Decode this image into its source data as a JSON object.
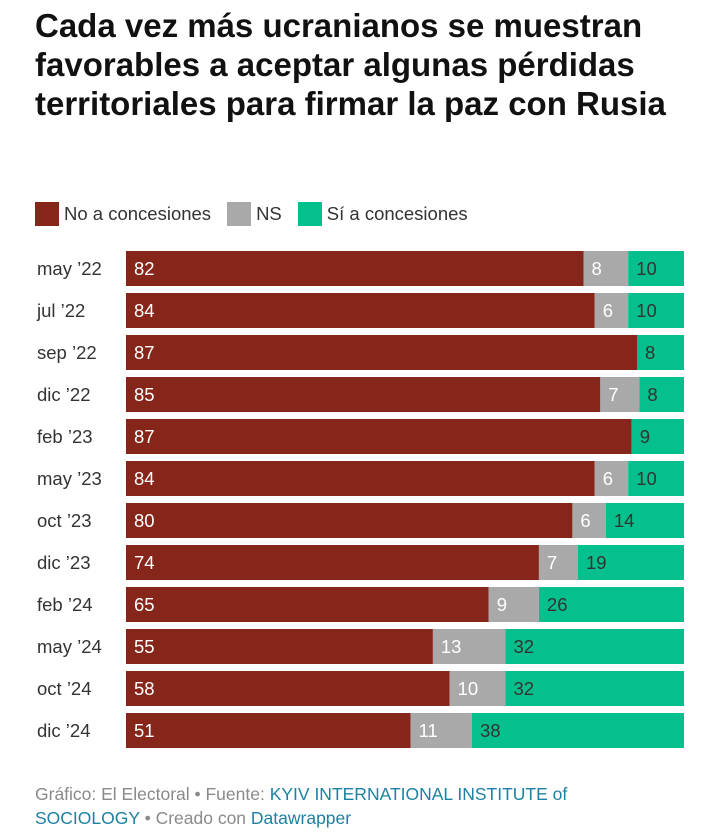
{
  "title": "Cada vez más ucranianos se muestran favorables a aceptar algunas pérdidas territoriales para firmar la paz con Rusia",
  "legend": [
    {
      "label": "No a concesiones",
      "color": "#86251a"
    },
    {
      "label": "NS",
      "color": "#a9a9a9"
    },
    {
      "label": "Sí a concesiones",
      "color": "#05c08c"
    }
  ],
  "chart_data": {
    "type": "bar",
    "orientation": "horizontal",
    "stacked": true,
    "normalized": true,
    "title": "Cada vez más ucranianos se muestran favorables a aceptar algunas pérdidas territoriales para firmar la paz con Rusia",
    "categories": [
      "may ’22",
      "jul ’22",
      "sep ’22",
      "dic ’22",
      "feb ’23",
      "may ’23",
      "oct ’23",
      "dic ’23",
      "feb ’24",
      "may ’24",
      "oct ’24",
      "dic ’24"
    ],
    "series": [
      {
        "name": "No a concesiones",
        "color": "#86251a",
        "values": [
          82,
          84,
          87,
          85,
          87,
          84,
          80,
          74,
          65,
          55,
          58,
          51
        ]
      },
      {
        "name": "NS",
        "color": "#a9a9a9",
        "values": [
          8,
          6,
          null,
          7,
          null,
          6,
          6,
          7,
          9,
          13,
          10,
          11
        ]
      },
      {
        "name": "Sí a concesiones",
        "color": "#05c08c",
        "values": [
          10,
          10,
          8,
          8,
          9,
          10,
          14,
          19,
          26,
          32,
          32,
          38
        ]
      }
    ],
    "xlabel": "",
    "ylabel": "",
    "legend_position": "top-left"
  },
  "footer": {
    "prefix": "Gráfico: El Electoral • Fuente: ",
    "source": "KYIV INTERNATIONAL INSTITUTE of SOCIOLOGY",
    "middle": " • Creado con ",
    "tool": "Datawrapper"
  }
}
